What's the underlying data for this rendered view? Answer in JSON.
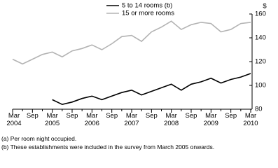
{
  "chart_data": {
    "type": "line",
    "y_label": "$",
    "categories": [
      "Mar\n2004",
      null,
      "Sep",
      null,
      "Mar\n2005",
      null,
      "Sep",
      null,
      "Mar\n2006",
      null,
      "Sep",
      null,
      "Mar\n2007",
      null,
      "Sep",
      null,
      "Mar\n2008",
      null,
      "Sep",
      null,
      "Mar\n2009",
      null,
      "Sep",
      null,
      "Mar\n2010"
    ],
    "series": [
      {
        "name": "5 to 14 rooms (b)",
        "color": "#000000",
        "values": [
          null,
          null,
          null,
          null,
          88,
          84,
          86,
          89,
          91,
          88,
          91,
          94,
          96,
          92,
          95,
          98,
          101,
          96,
          101,
          103,
          106,
          102,
          105,
          107,
          110
        ]
      },
      {
        "name": "15 or more rooms",
        "color": "#b3b3b3",
        "values": [
          122,
          118,
          122,
          126,
          128,
          124,
          129,
          131,
          134,
          130,
          135,
          141,
          142,
          137,
          145,
          149,
          154,
          147,
          151,
          153,
          152,
          145,
          147,
          152,
          153
        ]
      }
    ],
    "ylim": [
      80,
      160
    ],
    "yticks": [
      80,
      100,
      120,
      140,
      160
    ],
    "footnotes": [
      "(a) Per room night occupied.",
      "(b) These establishments were included in the survey from March 2005 onwards."
    ]
  }
}
